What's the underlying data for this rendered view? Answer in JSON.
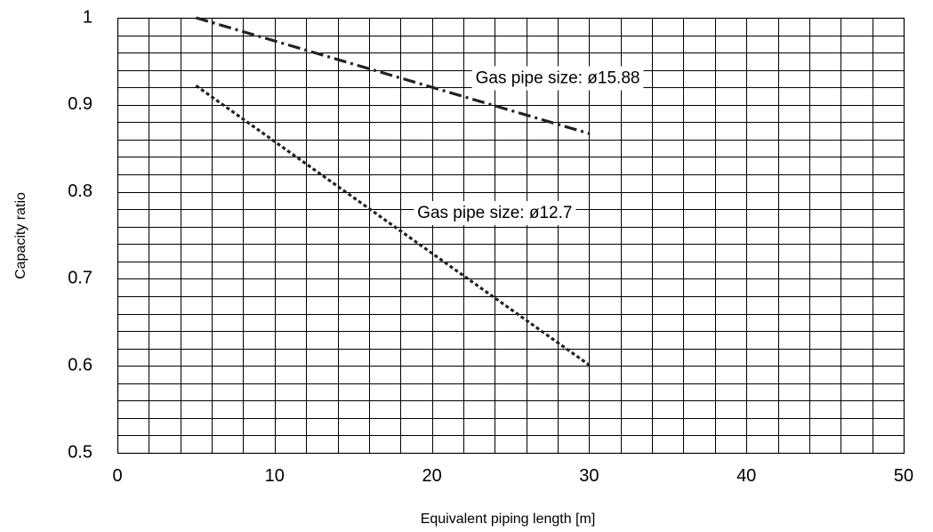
{
  "chart_data": {
    "type": "line",
    "xlabel": "Equivalent piping length [m]",
    "ylabel": "Capacity ratio",
    "xlim": [
      0,
      50
    ],
    "ylim": [
      0.5,
      1.0
    ],
    "x_ticks": [
      0,
      10,
      20,
      30,
      40,
      50
    ],
    "x_tick_labels": [
      "0",
      "10",
      "20",
      "30",
      "40",
      "50"
    ],
    "y_ticks": [
      0.5,
      0.6,
      0.7,
      0.8,
      0.9,
      1.0
    ],
    "y_tick_labels": [
      "0.5",
      "0.6",
      "0.7",
      "0.8",
      "0.9",
      "1"
    ],
    "x_minor_step": 2,
    "y_minor_step": 0.02,
    "grid": true,
    "series": [
      {
        "x": [
          5,
          30
        ],
        "y": [
          1.0,
          0.867
        ],
        "style": "dash-dot",
        "color": "#222222"
      },
      {
        "x": [
          5,
          30
        ],
        "y": [
          0.922,
          0.601
        ],
        "style": "dotted",
        "color": "#222222"
      }
    ],
    "annotations": [
      {
        "text": "Gas pipe size: ø15.88",
        "x": 28,
        "y": 0.93
      },
      {
        "text": "Gas pipe size: ø12.7",
        "x": 24,
        "y": 0.775
      }
    ]
  }
}
